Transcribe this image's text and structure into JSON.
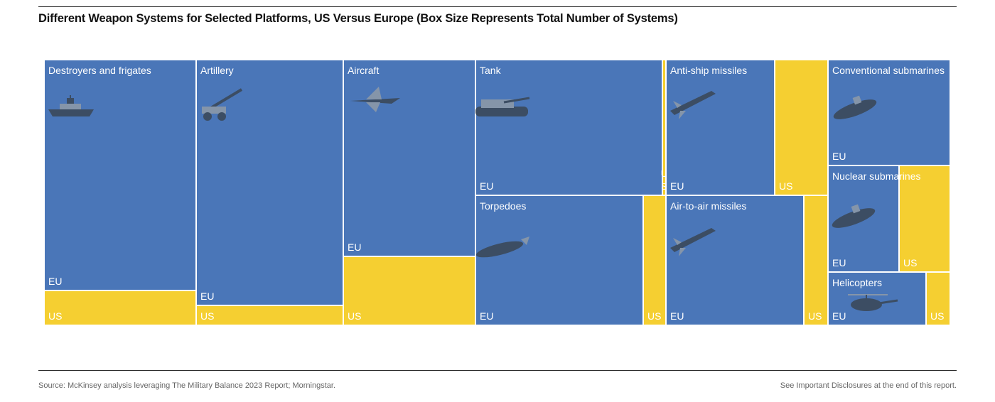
{
  "title": "Different Weapon Systems for Selected Platforms, US Versus Europe (Box Size Represents Total Number of Systems)",
  "source": "Source: McKinsey analysis leveraging The Military Balance 2023 Report; Morningstar.",
  "disclosure": "See Important Disclosures at the end of this report.",
  "colors": {
    "eu": "#4a76b8",
    "us": "#f5cf31",
    "border": "#ffffff",
    "label": "#ffffff"
  },
  "chart_data": {
    "type": "treemap",
    "labels": {
      "eu": "EU",
      "us": "US"
    },
    "platforms": [
      {
        "name": "Destroyers and frigates",
        "icon": "warship-icon",
        "eu": 87.0,
        "us": 13.0
      },
      {
        "name": "Artillery",
        "icon": "artillery-icon",
        "eu": 92.6,
        "us": 7.4
      },
      {
        "name": "Aircraft",
        "icon": "fighter-jet-icon",
        "eu": 74.0,
        "us": 26.0
      },
      {
        "name": "Tank",
        "icon": "tank-icon",
        "eu": 98.0,
        "us": 2.0
      },
      {
        "name": "Torpedoes",
        "icon": "torpedo-icon",
        "eu": 88.0,
        "us": 12.0
      },
      {
        "name": "Anti-ship missiles",
        "icon": "missile-icon",
        "eu": 67.0,
        "us": 33.0
      },
      {
        "name": "Air-to-air missiles",
        "icon": "missile-icon",
        "eu": 85.0,
        "us": 15.0
      },
      {
        "name": "Conventional submarines",
        "icon": "submarine-icon",
        "eu": 100.0,
        "us": 0.0
      },
      {
        "name": "Nuclear submarines",
        "icon": "submarine-icon",
        "eu": 58.0,
        "us": 42.0
      },
      {
        "name": "Helicopters",
        "icon": "helicopter-icon",
        "eu": 80.0,
        "us": 20.0
      }
    ]
  }
}
